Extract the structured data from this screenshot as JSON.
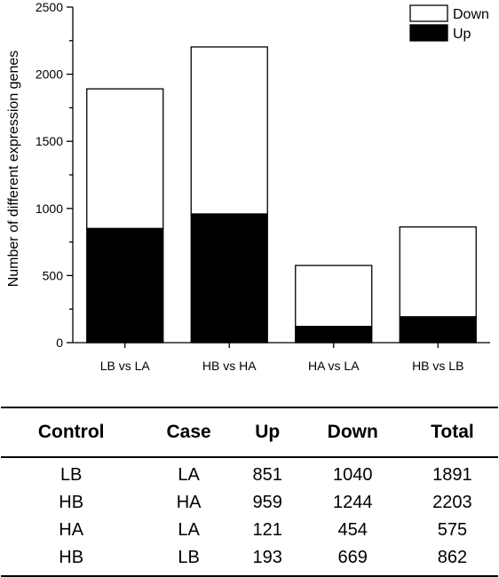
{
  "chart_data": {
    "type": "bar",
    "stacked": true,
    "categories": [
      "LB vs LA",
      "HB vs HA",
      "HA vs LA",
      "HB vs LB"
    ],
    "series": [
      {
        "name": "Up",
        "values": [
          851,
          959,
          121,
          193
        ],
        "color": "#000000"
      },
      {
        "name": "Down",
        "values": [
          1040,
          1244,
          454,
          669
        ],
        "color": "#ffffff"
      }
    ],
    "title": "",
    "xlabel": "",
    "ylabel": "Number of different expression genes",
    "ylim": [
      0,
      2500
    ],
    "yticks": [
      0,
      500,
      1000,
      1500,
      2000,
      2500
    ],
    "grid": false,
    "legend": {
      "placement": "top-right",
      "order": [
        "Down",
        "Up"
      ]
    }
  },
  "table": {
    "headers": [
      "Control",
      "Case",
      "Up",
      "Down",
      "Total"
    ],
    "rows": [
      [
        "LB",
        "LA",
        "851",
        "1040",
        "1891"
      ],
      [
        "HB",
        "HA",
        "959",
        "1244",
        "2203"
      ],
      [
        "HA",
        "LA",
        "121",
        "454",
        "575"
      ],
      [
        "HB",
        "LB",
        "193",
        "669",
        "862"
      ]
    ]
  }
}
